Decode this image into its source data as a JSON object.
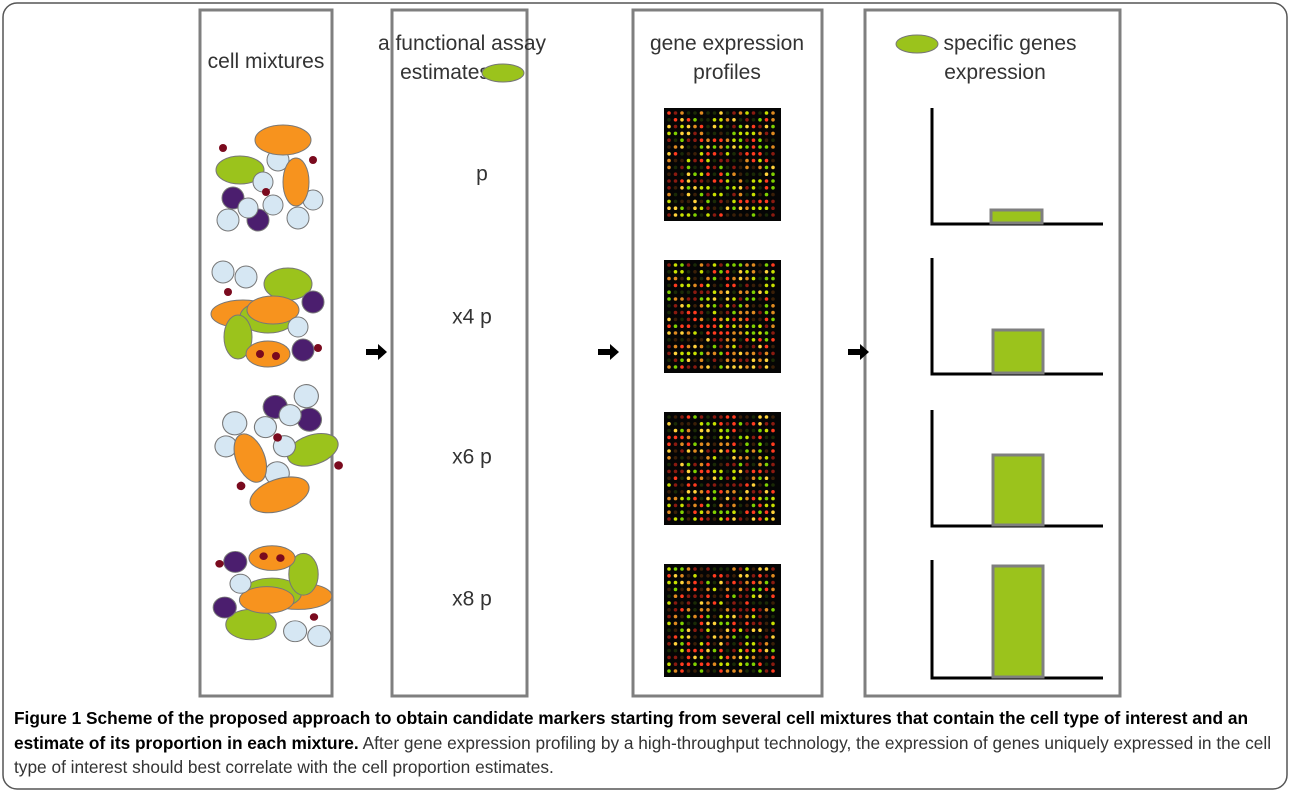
{
  "panels": [
    {
      "title": [
        "cell mixtures"
      ]
    },
    {
      "title": [
        "a functional assay",
        "estimates"
      ],
      "rows": [
        "p",
        "x4  p",
        "x6  p",
        "x8  p"
      ]
    },
    {
      "title": [
        "gene expression",
        "profiles"
      ]
    },
    {
      "title": [
        "specific genes",
        "expression"
      ]
    }
  ],
  "caption": {
    "label": "Figure 1",
    "title": "Scheme of the proposed approach to obtain candidate markers starting from several cell mixtures that contain the cell type of interest and an estimate of its proportion in each mixture.",
    "text": "After gene expression profiling by a high-throughput technology, the expression of genes uniquely expressed in the cell type of interest should best correlate with the cell proportion estimates."
  }
}
